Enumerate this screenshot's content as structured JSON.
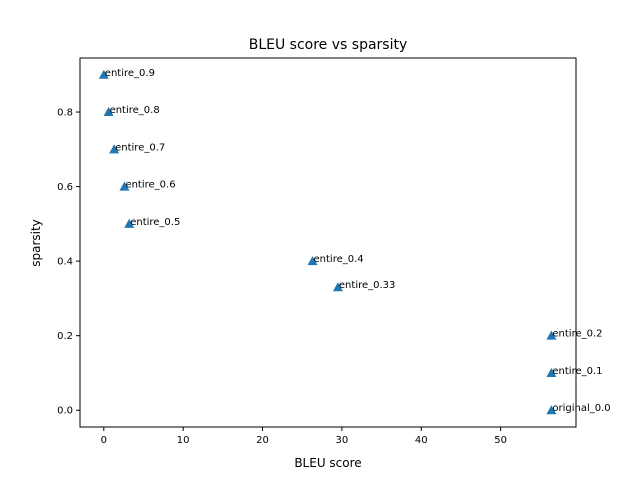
{
  "chart_data": {
    "type": "scatter",
    "title": "BLEU score vs sparsity",
    "xlabel": "BLEU score",
    "ylabel": "sparsity",
    "xlim": [
      -3,
      59.5
    ],
    "ylim": [
      -0.045,
      0.945
    ],
    "xticks": [
      0,
      10,
      20,
      30,
      40,
      50
    ],
    "xtick_labels": [
      "0",
      "10",
      "20",
      "30",
      "40",
      "50"
    ],
    "yticks": [
      0.0,
      0.2,
      0.4,
      0.6,
      0.8
    ],
    "ytick_labels": [
      "0.0",
      "0.2",
      "0.4",
      "0.6",
      "0.8"
    ],
    "grid": false,
    "marker": "triangle-up",
    "marker_color": "#1f77b4",
    "series": [
      {
        "points": [
          {
            "x": 0.0,
            "y": 0.9,
            "label": "entire_0.9"
          },
          {
            "x": 0.6,
            "y": 0.8,
            "label": "entire_0.8"
          },
          {
            "x": 1.3,
            "y": 0.7,
            "label": "entire_0.7"
          },
          {
            "x": 2.6,
            "y": 0.6,
            "label": "entire_0.6"
          },
          {
            "x": 3.2,
            "y": 0.5,
            "label": "entire_0.5"
          },
          {
            "x": 26.3,
            "y": 0.4,
            "label": "entire_0.4"
          },
          {
            "x": 29.5,
            "y": 0.33,
            "label": "entire_0.33"
          },
          {
            "x": 56.4,
            "y": 0.2,
            "label": "entire_0.2"
          },
          {
            "x": 56.4,
            "y": 0.1,
            "label": "entire_0.1"
          },
          {
            "x": 56.4,
            "y": 0.0,
            "label": "original_0.0"
          }
        ]
      }
    ]
  }
}
